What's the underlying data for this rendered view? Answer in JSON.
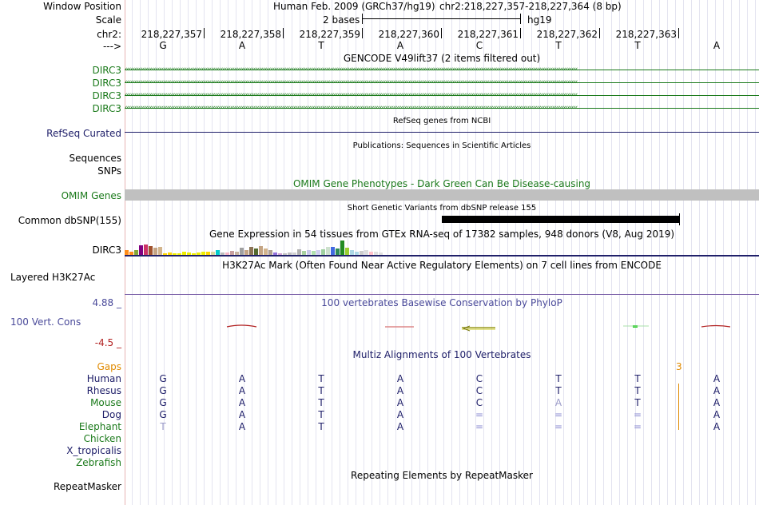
{
  "labels": {
    "window_position": "Window Position",
    "scale": "Scale",
    "chr": "chr2:",
    "strand": "--->",
    "dirc3": "DIRC3",
    "refseq": "RefSeq Curated",
    "sequences": "Sequences",
    "snps": "SNPs",
    "omim": "OMIM Genes",
    "common_dbsnp": "Common dbSNP(155)",
    "dirc3_gtex": "DIRC3",
    "h3k27ac": "Layered H3K27Ac",
    "phylop_max": "4.88 _",
    "vert_cons": "100 Vert. Cons",
    "phylop_min": "-4.5 _",
    "gaps": "Gaps",
    "species": [
      "Human",
      "Rhesus",
      "Mouse",
      "Dog",
      "Elephant",
      "Chicken",
      "X_tropicalis",
      "Zebrafish"
    ],
    "repeatmasker": "RepeatMasker"
  },
  "header": {
    "assembly": "Human Feb. 2009 (GRCh37/hg19)",
    "position": "chr2:218,227,357-218,227,364 (8 bp)",
    "scale_text": "2 bases",
    "scale_db": "hg19"
  },
  "ruler": [
    "218,227,357",
    "218,227,358",
    "218,227,359",
    "218,227,360",
    "218,227,361",
    "218,227,362",
    "218,227,363"
  ],
  "reference_bases": [
    "G",
    "A",
    "T",
    "A",
    "C",
    "T",
    "T",
    "A"
  ],
  "tracks": {
    "gencode_title": "GENCODE V49lift37 (2 items filtered out)",
    "refseq_title": "RefSeq genes from NCBI",
    "publications_title": "Publications: Sequences in Scientific Articles",
    "omim_title": "OMIM Gene Phenotypes - Dark Green Can Be Disease-causing",
    "snp_title": "Short Genetic Variants from dbSNP release 155",
    "gtex_title": "Gene Expression in 54 tissues from GTEx RNA-seq of 17382 samples, 948 donors (V8, Aug 2019)",
    "h3k27ac_title": "H3K27Ac Mark (Often Found Near Active Regulatory Elements) on 7 cell lines from ENCODE",
    "phylop_title": "100 vertebrates Basewise Conservation by PhyloP",
    "multiz_title": "Multiz Alignments of 100 Vertebrates",
    "gap_count": "3",
    "repeatmasker_title": "Repeating Elements by RepeatMasker"
  },
  "alignment": [
    [
      "G",
      "A",
      "T",
      "A",
      "C",
      "T",
      "T",
      "A"
    ],
    [
      "G",
      "A",
      "T",
      "A",
      "C",
      "T",
      "T",
      "A"
    ],
    [
      "G",
      "A",
      "T",
      "A",
      "C",
      "A",
      "T",
      "A"
    ],
    [
      "G",
      "A",
      "T",
      "A",
      "=",
      "=",
      "=",
      "A"
    ],
    [
      "T",
      "A",
      "T",
      "A",
      "=",
      "=",
      "=",
      "A"
    ]
  ],
  "colors": {
    "navy": "#20206a",
    "gene_green": "#1b7a1b",
    "gaps_orange": "#e08a00",
    "omim_gray": "#c0c0c0",
    "phylop_red": "#b22222",
    "phylop_blue": "#4a4a9a"
  },
  "gtex_bars": [
    {
      "value": 0.28,
      "color": "#ff8c1a"
    },
    {
      "value": 0.22,
      "color": "#ff8c1a"
    },
    {
      "value": 0.3,
      "color": "#86a637"
    },
    {
      "value": 0.6,
      "color": "#800080"
    },
    {
      "value": 0.65,
      "color": "#cc3366"
    },
    {
      "value": 0.55,
      "color": "#a0522d"
    },
    {
      "value": 0.45,
      "color": "#c4a484"
    },
    {
      "value": 0.5,
      "color": "#d2b48c"
    },
    {
      "value": 0.1,
      "color": "#ffd700"
    },
    {
      "value": 0.15,
      "color": "#ffd700"
    },
    {
      "value": 0.12,
      "color": "#eeee00"
    },
    {
      "value": 0.12,
      "color": "#eeee00"
    },
    {
      "value": 0.18,
      "color": "#eeee00"
    },
    {
      "value": 0.15,
      "color": "#eeee00"
    },
    {
      "value": 0.12,
      "color": "#eeee00"
    },
    {
      "value": 0.15,
      "color": "#eeee00"
    },
    {
      "value": 0.18,
      "color": "#eeee00"
    },
    {
      "value": 0.2,
      "color": "#ffd700"
    },
    {
      "value": 0.22,
      "color": "#d8d8a0"
    },
    {
      "value": 0.3,
      "color": "#00cccc"
    },
    {
      "value": 0.15,
      "color": "#bbbbbb"
    },
    {
      "value": 0.15,
      "color": "#f4b4c4"
    },
    {
      "value": 0.25,
      "color": "#c8a0a0"
    },
    {
      "value": 0.2,
      "color": "#c8b4a0"
    },
    {
      "value": 0.45,
      "color": "#a0a0a0"
    },
    {
      "value": 0.3,
      "color": "#c4a484"
    },
    {
      "value": 0.5,
      "color": "#8b7355"
    },
    {
      "value": 0.4,
      "color": "#556b2f"
    },
    {
      "value": 0.55,
      "color": "#c4a484"
    },
    {
      "value": 0.4,
      "color": "#d2b48c"
    },
    {
      "value": 0.3,
      "color": "#b0a090"
    },
    {
      "value": 0.15,
      "color": "#9370db"
    },
    {
      "value": 0.12,
      "color": "#d0a0d0"
    },
    {
      "value": 0.12,
      "color": "#c0c0c0"
    },
    {
      "value": 0.15,
      "color": "#c0c0c0"
    },
    {
      "value": 0.15,
      "color": "#d0d0d0"
    },
    {
      "value": 0.35,
      "color": "#b0b0b0"
    },
    {
      "value": 0.25,
      "color": "#a8d0a0"
    },
    {
      "value": 0.3,
      "color": "#c8c8e8"
    },
    {
      "value": 0.25,
      "color": "#b0e0b0"
    },
    {
      "value": 0.3,
      "color": "#d0d0f0"
    },
    {
      "value": 0.35,
      "color": "#9fd0a0"
    },
    {
      "value": 0.5,
      "color": "#cde0cd"
    },
    {
      "value": 0.5,
      "color": "#4169e1"
    },
    {
      "value": 0.4,
      "color": "#2e8b57"
    },
    {
      "value": 0.9,
      "color": "#228b22"
    },
    {
      "value": 0.45,
      "color": "#9acd32"
    },
    {
      "value": 0.3,
      "color": "#add8e6"
    },
    {
      "value": 0.22,
      "color": "#add8e6"
    },
    {
      "value": 0.25,
      "color": "#cccccc"
    },
    {
      "value": 0.3,
      "color": "#dddddd"
    },
    {
      "value": 0.2,
      "color": "#ffc0cb"
    },
    {
      "value": 0.2,
      "color": "#e0e0e0"
    },
    {
      "value": 0.15,
      "color": "#e0e0e0"
    }
  ]
}
